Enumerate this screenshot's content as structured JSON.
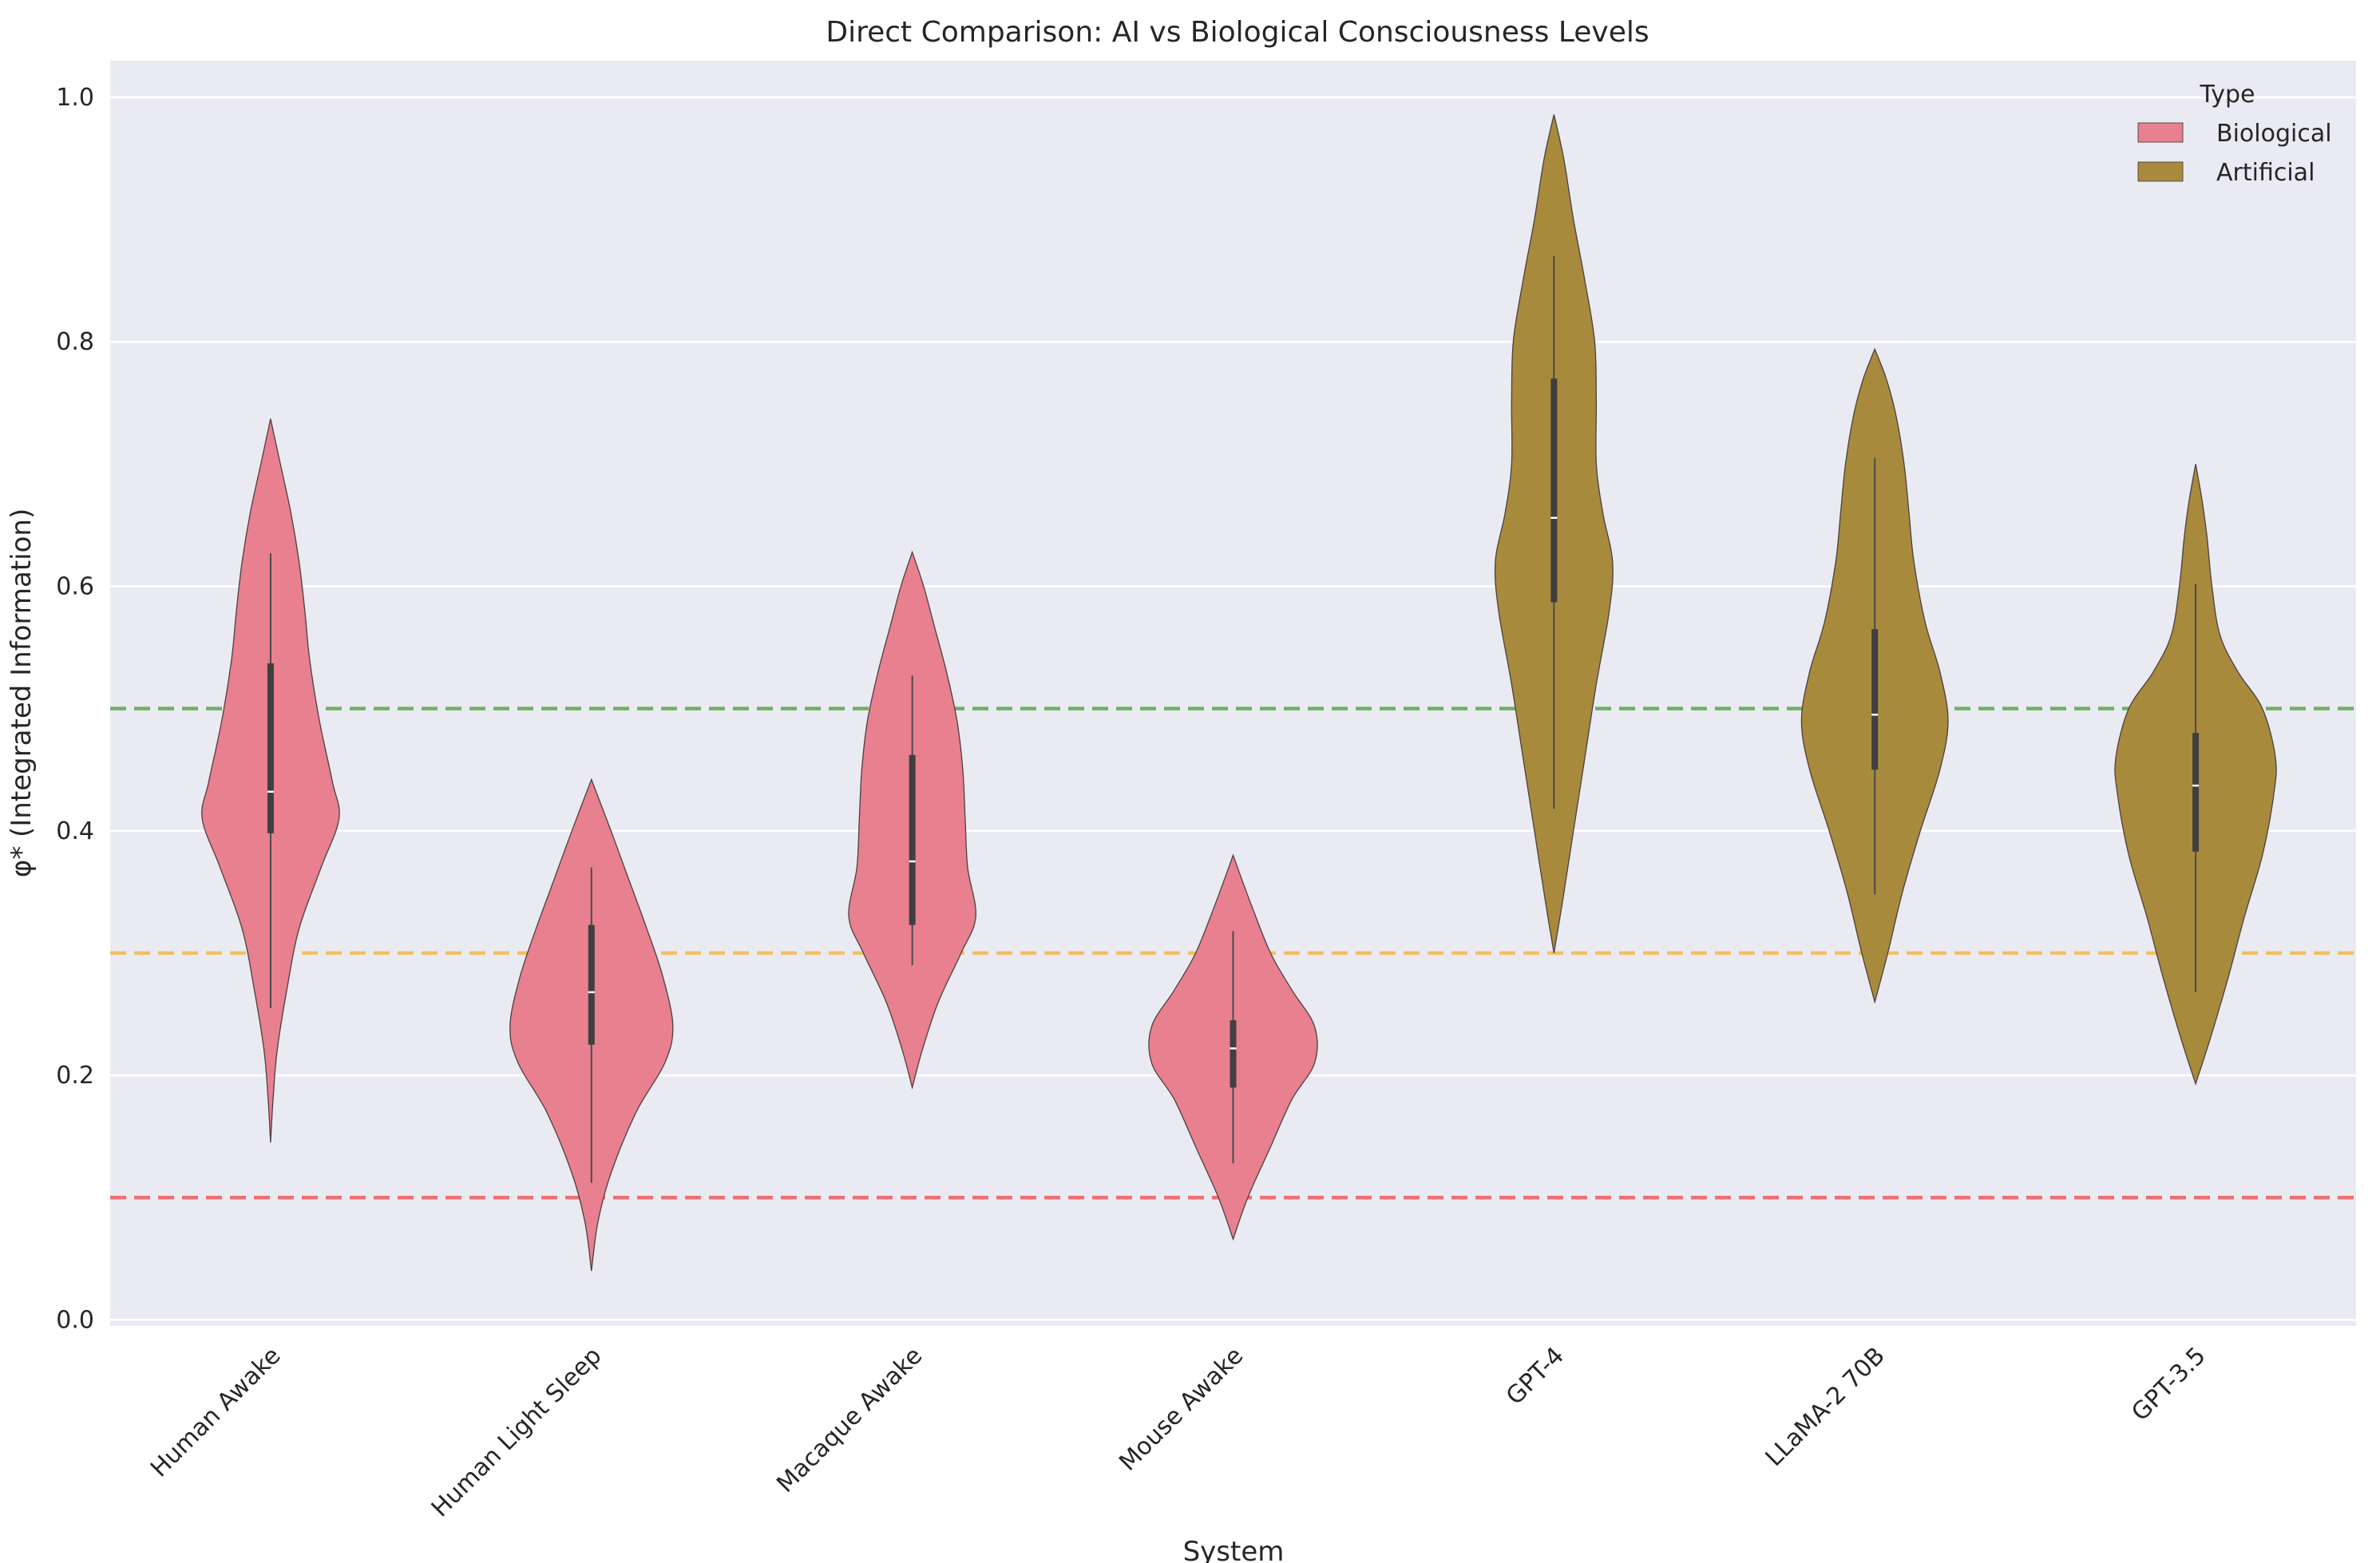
{
  "chart_data": {
    "type": "violin",
    "title": "Direct Comparison: AI vs Biological Consciousness Levels",
    "xlabel": "System",
    "ylabel": "φ* (Integrated Information)",
    "ylim": [
      -0.005,
      1.03
    ],
    "yticks": [
      "0.0",
      "0.2",
      "0.4",
      "0.6",
      "0.8",
      "1.0"
    ],
    "yticks_values": [
      0,
      0.2,
      0.4,
      0.6,
      0.8,
      1.0
    ],
    "legend": {
      "title": "Type",
      "position": "top-right",
      "entries": [
        {
          "label": "Biological",
          "color": "#e8808f"
        },
        {
          "label": "Artificial",
          "color": "#a88a3d"
        }
      ]
    },
    "reference_lines": [
      {
        "value": 0.5,
        "color": "#5aa64a"
      },
      {
        "value": 0.3,
        "color": "#f5b94a"
      },
      {
        "value": 0.1,
        "color": "#ef5a5f"
      }
    ],
    "categories": [
      "Human Awake",
      "Human Light Sleep",
      "Macaque Awake",
      "Mouse Awake",
      "GPT-4",
      "LLaMA-2 70B",
      "GPT-3.5"
    ],
    "violins": [
      {
        "name": "Human Awake",
        "type": "Biological",
        "min": 0.145,
        "max": 0.737,
        "whisker_low": 0.255,
        "whisker_high": 0.627,
        "q1": 0.398,
        "median": 0.432,
        "q3": 0.537,
        "profile": [
          [
            0.145,
            0.0
          ],
          [
            0.18,
            0.03
          ],
          [
            0.22,
            0.08
          ],
          [
            0.27,
            0.2
          ],
          [
            0.32,
            0.35
          ],
          [
            0.37,
            0.62
          ],
          [
            0.41,
            0.84
          ],
          [
            0.44,
            0.76
          ],
          [
            0.49,
            0.6
          ],
          [
            0.54,
            0.48
          ],
          [
            0.58,
            0.42
          ],
          [
            0.62,
            0.35
          ],
          [
            0.66,
            0.25
          ],
          [
            0.7,
            0.12
          ],
          [
            0.737,
            0.0
          ]
        ]
      },
      {
        "name": "Human Light Sleep",
        "type": "Biological",
        "min": 0.04,
        "max": 0.442,
        "whisker_low": 0.112,
        "whisker_high": 0.37,
        "q1": 0.225,
        "median": 0.268,
        "q3": 0.323,
        "profile": [
          [
            0.04,
            0.0
          ],
          [
            0.08,
            0.08
          ],
          [
            0.12,
            0.24
          ],
          [
            0.17,
            0.55
          ],
          [
            0.21,
            0.9
          ],
          [
            0.24,
            1.0
          ],
          [
            0.28,
            0.88
          ],
          [
            0.32,
            0.68
          ],
          [
            0.36,
            0.46
          ],
          [
            0.4,
            0.24
          ],
          [
            0.442,
            0.0
          ]
        ]
      },
      {
        "name": "Macaque Awake",
        "type": "Biological",
        "min": 0.19,
        "max": 0.628,
        "whisker_low": 0.29,
        "whisker_high": 0.527,
        "q1": 0.323,
        "median": 0.375,
        "q3": 0.462,
        "profile": [
          [
            0.19,
            0.0
          ],
          [
            0.22,
            0.12
          ],
          [
            0.26,
            0.32
          ],
          [
            0.3,
            0.6
          ],
          [
            0.33,
            0.78
          ],
          [
            0.37,
            0.68
          ],
          [
            0.41,
            0.65
          ],
          [
            0.45,
            0.62
          ],
          [
            0.49,
            0.55
          ],
          [
            0.53,
            0.42
          ],
          [
            0.57,
            0.26
          ],
          [
            0.6,
            0.14
          ],
          [
            0.628,
            0.0
          ]
        ]
      },
      {
        "name": "Mouse Awake",
        "type": "Biological",
        "min": 0.066,
        "max": 0.38,
        "whisker_low": 0.128,
        "whisker_high": 0.318,
        "q1": 0.19,
        "median": 0.222,
        "q3": 0.245,
        "profile": [
          [
            0.066,
            0.0
          ],
          [
            0.1,
            0.18
          ],
          [
            0.14,
            0.45
          ],
          [
            0.18,
            0.72
          ],
          [
            0.21,
            1.0
          ],
          [
            0.24,
            1.0
          ],
          [
            0.27,
            0.72
          ],
          [
            0.3,
            0.46
          ],
          [
            0.34,
            0.22
          ],
          [
            0.38,
            0.0
          ]
        ]
      },
      {
        "name": "GPT-4",
        "type": "Artificial",
        "min": 0.3,
        "max": 0.986,
        "whisker_low": 0.418,
        "whisker_high": 0.87,
        "q1": 0.587,
        "median": 0.656,
        "q3": 0.77,
        "profile": [
          [
            0.3,
            0.0
          ],
          [
            0.34,
            0.1
          ],
          [
            0.4,
            0.24
          ],
          [
            0.46,
            0.38
          ],
          [
            0.52,
            0.52
          ],
          [
            0.58,
            0.68
          ],
          [
            0.62,
            0.72
          ],
          [
            0.66,
            0.6
          ],
          [
            0.7,
            0.52
          ],
          [
            0.75,
            0.52
          ],
          [
            0.8,
            0.5
          ],
          [
            0.85,
            0.38
          ],
          [
            0.9,
            0.24
          ],
          [
            0.95,
            0.12
          ],
          [
            0.986,
            0.0
          ]
        ]
      },
      {
        "name": "LLaMA-2 70B",
        "type": "Artificial",
        "min": 0.26,
        "max": 0.794,
        "whisker_low": 0.348,
        "whisker_high": 0.705,
        "q1": 0.45,
        "median": 0.495,
        "q3": 0.565,
        "profile": [
          [
            0.26,
            0.0
          ],
          [
            0.3,
            0.16
          ],
          [
            0.35,
            0.34
          ],
          [
            0.4,
            0.56
          ],
          [
            0.45,
            0.8
          ],
          [
            0.49,
            0.9
          ],
          [
            0.53,
            0.8
          ],
          [
            0.57,
            0.62
          ],
          [
            0.62,
            0.48
          ],
          [
            0.66,
            0.42
          ],
          [
            0.7,
            0.36
          ],
          [
            0.74,
            0.26
          ],
          [
            0.77,
            0.14
          ],
          [
            0.794,
            0.0
          ]
        ]
      },
      {
        "name": "GPT-3.5",
        "type": "Artificial",
        "min": 0.193,
        "max": 0.7,
        "whisker_low": 0.268,
        "whisker_high": 0.602,
        "q1": 0.383,
        "median": 0.437,
        "q3": 0.48,
        "profile": [
          [
            0.193,
            0.0
          ],
          [
            0.23,
            0.18
          ],
          [
            0.28,
            0.4
          ],
          [
            0.33,
            0.6
          ],
          [
            0.38,
            0.82
          ],
          [
            0.43,
            0.96
          ],
          [
            0.46,
            0.98
          ],
          [
            0.5,
            0.82
          ],
          [
            0.53,
            0.52
          ],
          [
            0.56,
            0.3
          ],
          [
            0.6,
            0.2
          ],
          [
            0.64,
            0.14
          ],
          [
            0.67,
            0.08
          ],
          [
            0.7,
            0.0
          ]
        ]
      }
    ]
  }
}
